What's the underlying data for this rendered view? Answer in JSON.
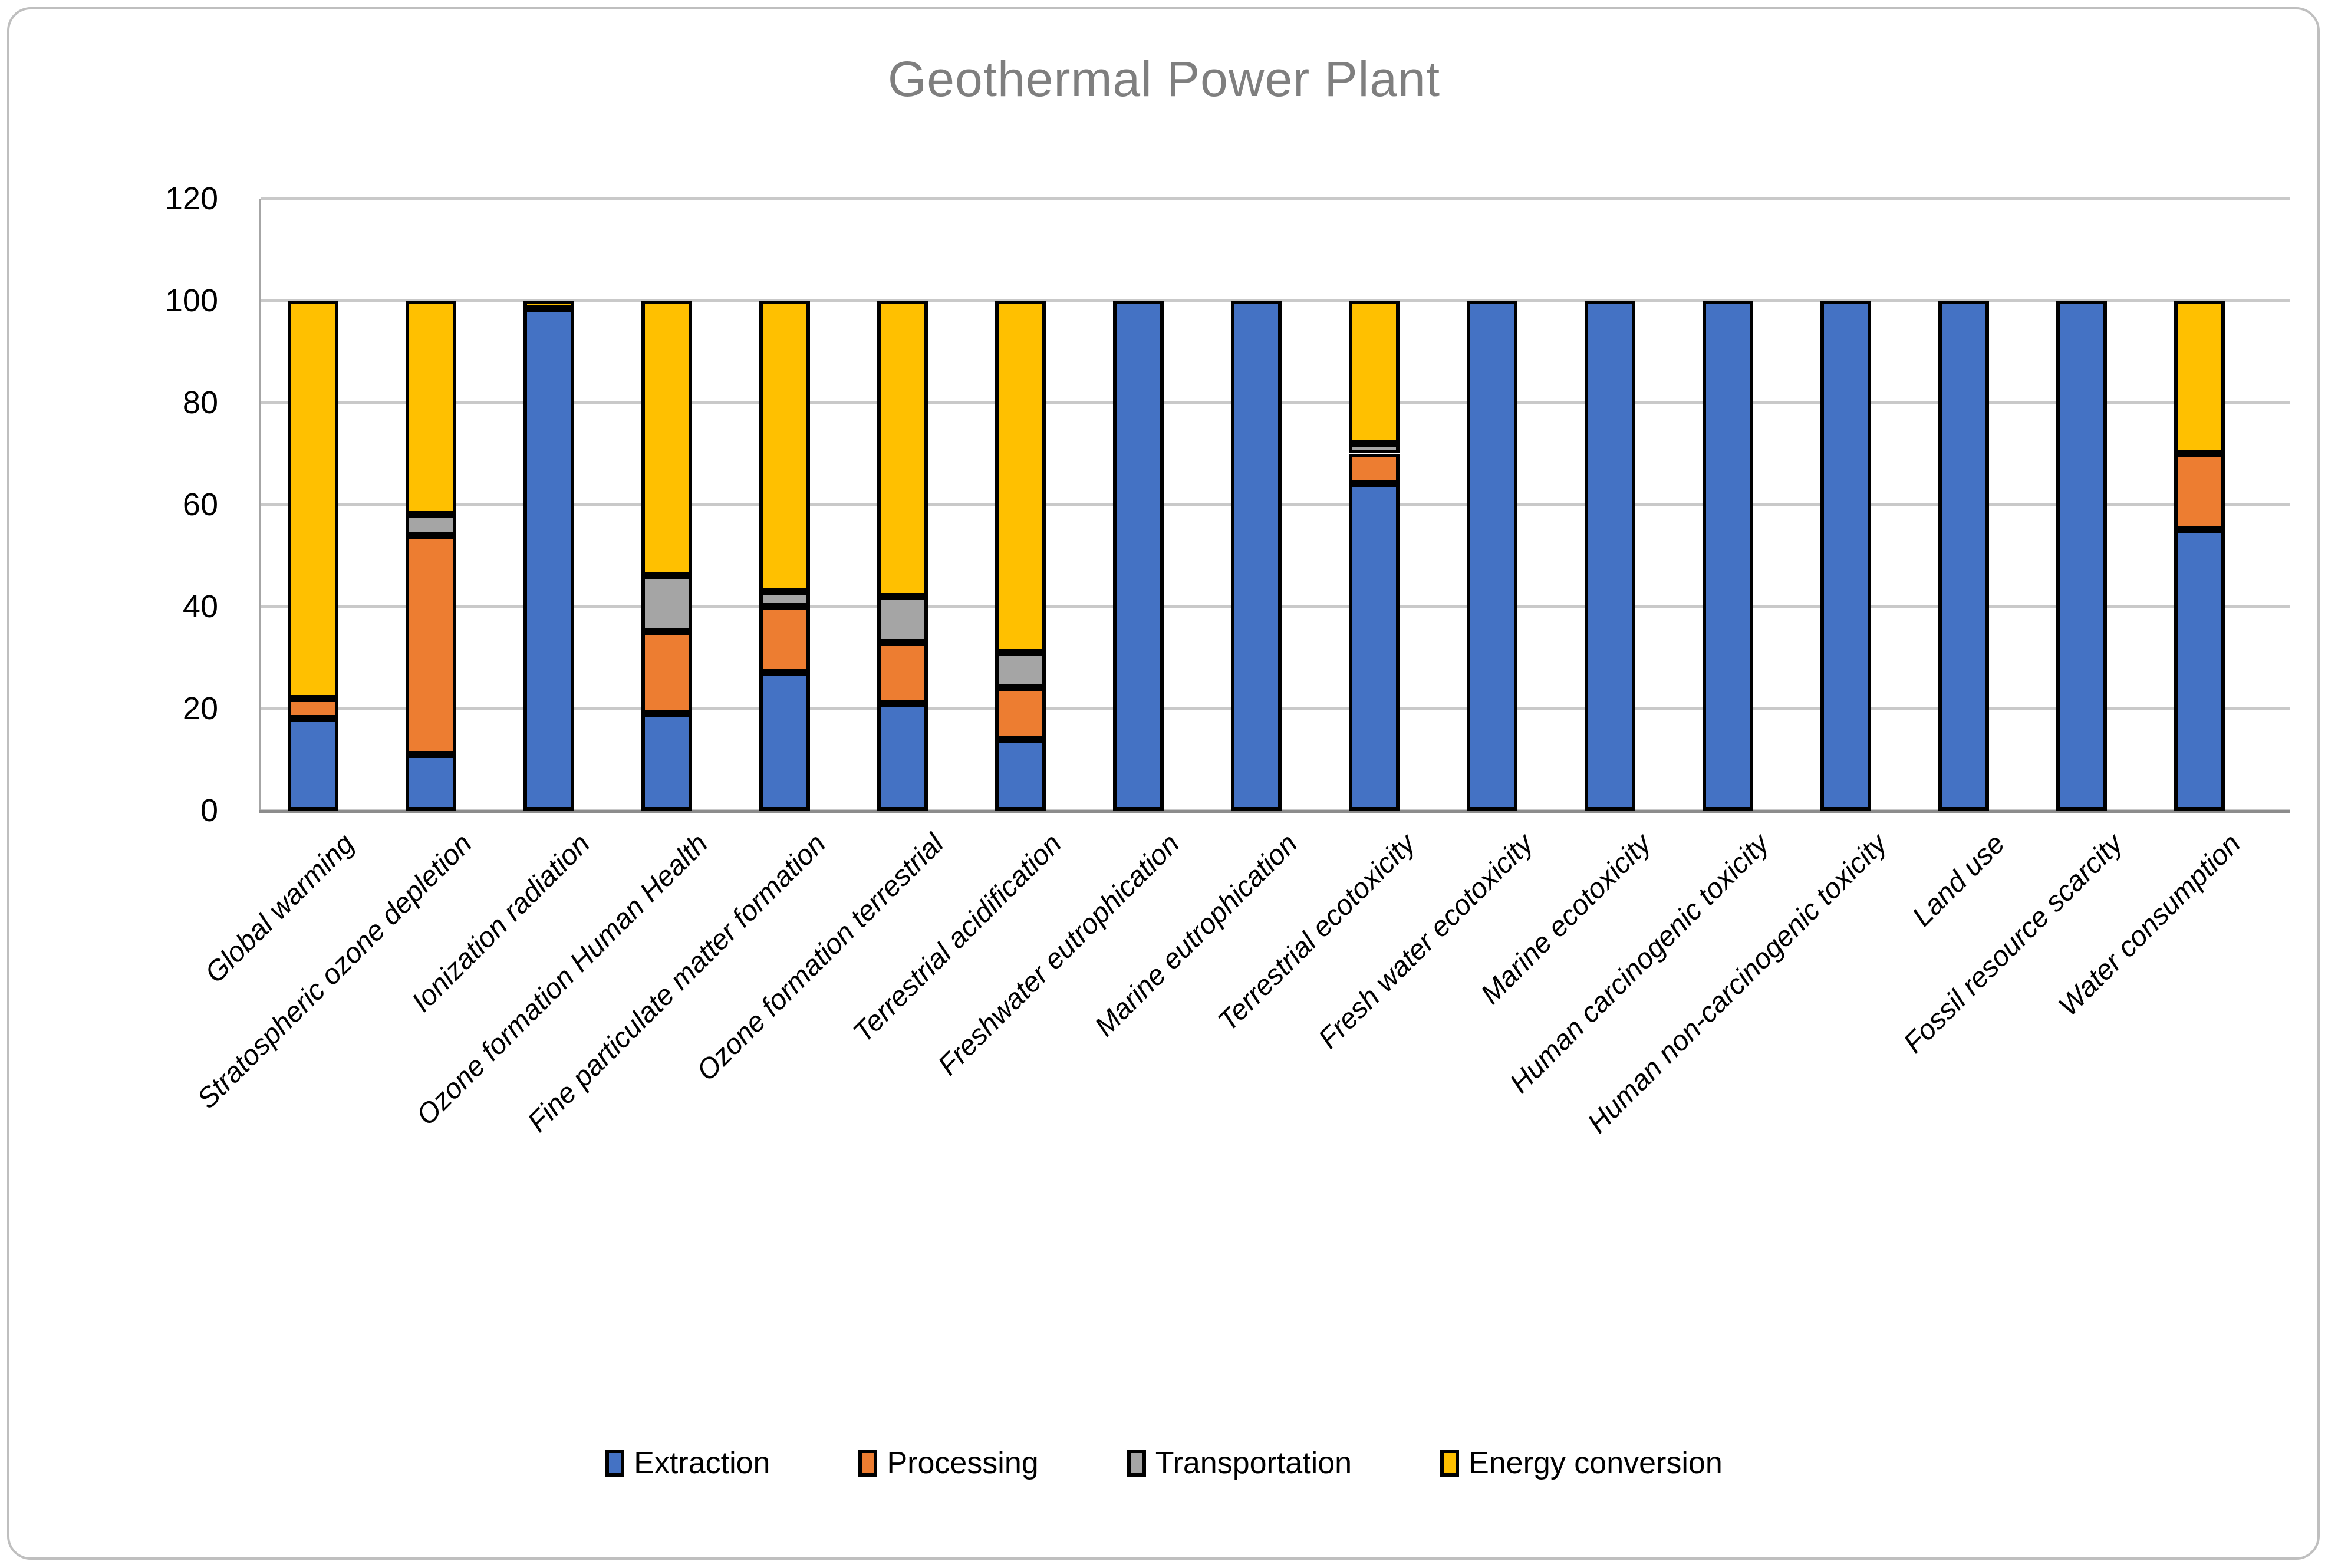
{
  "chart_data": {
    "type": "bar",
    "stacked": true,
    "title": "Geothermal Power Plant",
    "xlabel": "",
    "ylabel": "",
    "ylim": [
      0,
      120
    ],
    "yticks": [
      0,
      20,
      40,
      60,
      80,
      100,
      120
    ],
    "grid": true,
    "legend_position": "bottom",
    "categories": [
      "Global warming",
      "Stratospheric ozone depletion",
      "Ionization radiation",
      "Ozone formation Human Health",
      "Fine particulate matter formation",
      "Ozone formation terrestrial",
      "Terrestrial acidification",
      "Freshwater eutrophication",
      "Marine eutrophication",
      "Terrestrial ecotoxicity",
      "Fresh water ecotoxicity",
      "Marine ecotoxicity",
      "Human carcinogenic toxicity",
      "Human non-carcinogenic toxicity",
      "Land use",
      "Fossil resource scarcity",
      "Water consumption"
    ],
    "series": [
      {
        "name": "Extraction",
        "color": "#4472C4",
        "values": [
          18,
          11,
          98.5,
          19,
          27,
          21,
          14,
          100,
          100,
          64,
          100,
          100,
          100,
          100,
          100,
          100,
          55
        ]
      },
      {
        "name": "Processing",
        "color": "#ED7D31",
        "values": [
          4,
          43,
          0,
          16,
          13,
          12,
          10,
          0,
          0,
          6,
          0,
          0,
          0,
          0,
          0,
          0,
          15
        ]
      },
      {
        "name": "Transportation",
        "color": "#A5A5A5",
        "values": [
          0,
          4,
          0,
          11,
          3,
          9,
          7,
          0,
          0,
          2,
          0,
          0,
          0,
          0,
          0,
          0,
          0
        ]
      },
      {
        "name": "Energy conversion",
        "color": "#FFC000",
        "values": [
          78,
          42,
          1.5,
          54,
          57,
          58,
          69,
          0,
          0,
          28,
          0,
          0,
          0,
          0,
          0,
          0,
          30
        ]
      }
    ],
    "styles": {
      "title_color": "#7F7F7F",
      "gridline_color": "#C9C9C9",
      "bar_border_color": "#000000",
      "frame_border_color": "#BFBFBF"
    }
  }
}
